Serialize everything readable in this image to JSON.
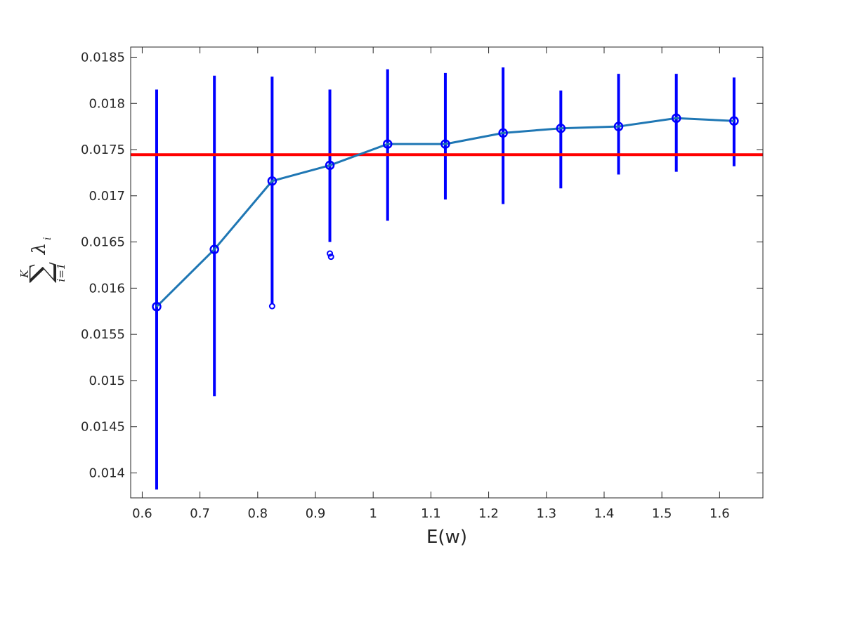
{
  "chart_data": {
    "type": "line",
    "title": "",
    "xlabel": "E(w)",
    "ylabel": {
      "sum_symbol": "∑",
      "upper_limit": "K",
      "lower_limit": "i=1",
      "term": "λ",
      "term_subscript": "i"
    },
    "xlim": [
      0.58,
      1.675
    ],
    "ylim": [
      0.01373,
      0.01861
    ],
    "x_ticks": [
      0.6,
      0.7,
      0.8,
      0.9,
      1,
      1.1,
      1.2,
      1.3,
      1.4,
      1.5,
      1.6
    ],
    "x_tick_labels": [
      "0.6",
      "0.7",
      "0.8",
      "0.9",
      "1",
      "1.1",
      "1.2",
      "1.3",
      "1.4",
      "1.5",
      "1.6"
    ],
    "y_ticks": [
      0.014,
      0.0145,
      0.015,
      0.0155,
      0.016,
      0.0165,
      0.017,
      0.0175,
      0.018,
      0.0185
    ],
    "y_tick_labels": [
      "0.014",
      "0.0145",
      "0.015",
      "0.0155",
      "0.016",
      "0.0165",
      "0.017",
      "0.0175",
      "0.018",
      "0.0185"
    ],
    "grid": false,
    "legend": "none",
    "series": [
      {
        "x": [
          0.625,
          0.725,
          0.825,
          0.925,
          1.025,
          1.125,
          1.225,
          1.325,
          1.425,
          1.525,
          1.625
        ],
        "y": [
          0.0158,
          0.01642,
          0.01716,
          0.01733,
          0.01756,
          0.01756,
          0.01768,
          0.01773,
          0.01775,
          0.01784,
          0.01781
        ],
        "color": "#1f77b4",
        "marker": "circle"
      }
    ],
    "error_bars": {
      "color": "#0000ff",
      "low": [
        0.01382,
        0.01483,
        0.01583,
        0.0165,
        0.01673,
        0.01696,
        0.01691,
        0.01708,
        0.01723,
        0.01726,
        0.01732
      ],
      "high": [
        0.01815,
        0.0183,
        0.01829,
        0.01815,
        0.01837,
        0.01833,
        0.01839,
        0.01814,
        0.01832,
        0.01832,
        0.01828
      ]
    },
    "outliers": {
      "color": "#0000ff",
      "points": [
        {
          "x": 0.825,
          "y": 0.015805
        },
        {
          "x": 0.925,
          "y": 0.016375
        },
        {
          "x": 0.927,
          "y": 0.01634
        }
      ]
    },
    "reference_line": {
      "y": 0.017445,
      "color": "#ff0000"
    }
  }
}
